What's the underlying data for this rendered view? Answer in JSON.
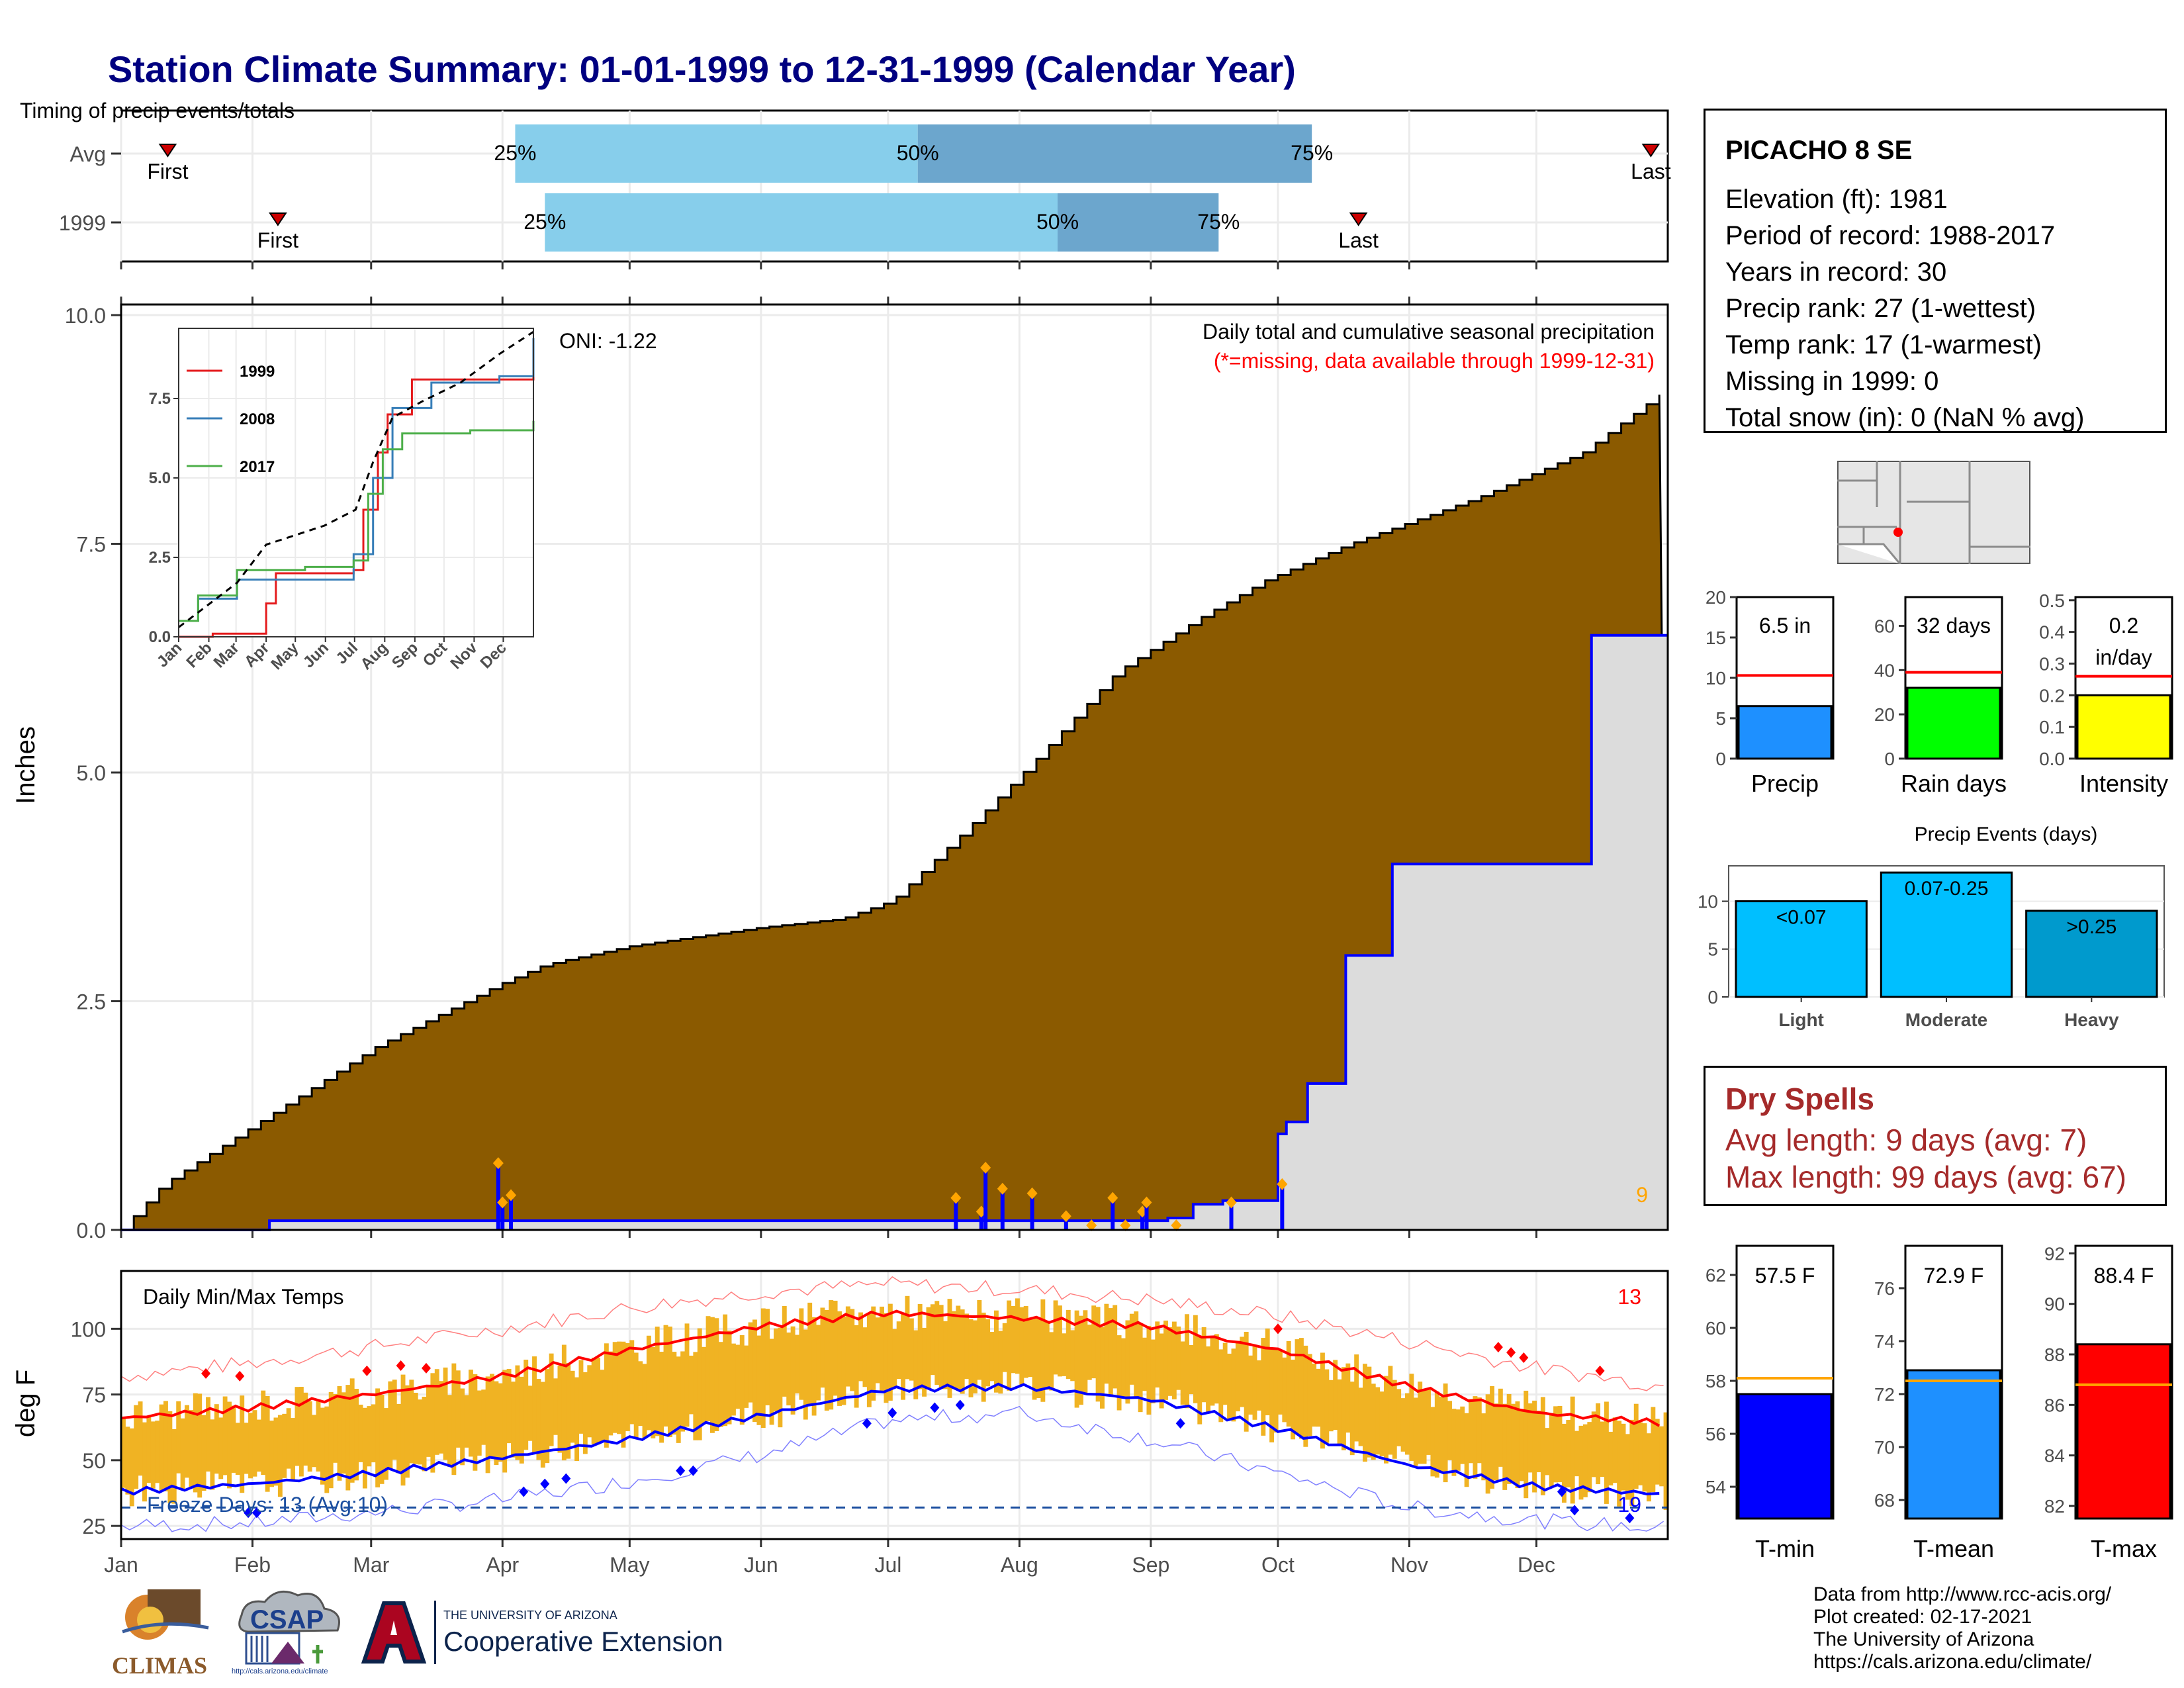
{
  "title": "Station Climate Summary: 01-01-1999 to 12-31-1999 (Calendar Year)",
  "station": {
    "name": "PICACHO 8 SE",
    "lines": [
      "Elevation (ft): 1981",
      "Period of record: 1988-2017",
      "Years in record: 30",
      "Precip rank: 27 (1-wettest)",
      "Temp rank: 17 (1-warmest)",
      "Missing in 1999: 0",
      "Total snow (in): 0 (NaN % avg)"
    ]
  },
  "dry_spells": {
    "title": "Dry Spells",
    "avg": "Avg length: 9 days (avg: 7)",
    "max": "Max length: 99 days (avg: 67)"
  },
  "credits": [
    "Data from http://www.rcc-acis.org/",
    "Plot created: 02-17-2021",
    "The University of Arizona",
    "https://cals.arizona.edu/climate/"
  ],
  "logos": {
    "climas": "CLIMAS",
    "csap": "CSAP",
    "csap_url": "http://cals.arizona.edu/climate",
    "ua_top": "THE UNIVERSITY OF ARIZONA",
    "ua_bottom": "Cooperative Extension"
  },
  "colors": {
    "cum_normal": "#8b5a00",
    "cum_obs_fill": "#dcdcdc",
    "cum_obs_line": "#0000ff",
    "timing_light": "#87ceeb",
    "timing_dark": "#6ca6cd",
    "temp_bar": "#f0b323",
    "tmax": "#ff0000",
    "tmin": "#0000ff",
    "precip_bar": "#1e90ff",
    "rain_days_bar": "#00ff00",
    "intensity_bar": "#ffff00",
    "events_bar": "#00bfff",
    "tmin_bar": "#0000ff",
    "tmean_bar": "#1e90ff",
    "tmax_bar": "#ff0000",
    "normal_line": "#ff0000",
    "temp_normal_line": "#ffa500"
  },
  "chart_data": [
    {
      "type": "timeline",
      "title": "Timing of precip events/totals",
      "rows": [
        {
          "label": "Avg",
          "first_day": 11,
          "p25_day": 93,
          "p50_day": 188,
          "p75_day": 281,
          "last_day": 361,
          "labels": {
            "first": "First",
            "p25": "25%",
            "p50": "50%",
            "p75": "75%",
            "last": "Last"
          }
        },
        {
          "label": "1999",
          "first_day": 37,
          "p25_day": 100,
          "p50_day": 221,
          "p75_day": 259,
          "last_day": 292,
          "labels": {
            "first": "First",
            "p25": "25%",
            "p50": "50%",
            "p75": "75%",
            "last": "Last"
          }
        }
      ]
    },
    {
      "type": "area",
      "title": "Daily total and cumulative seasonal precipitation",
      "subtitle": "(*=missing, data available through 1999-12-31)",
      "annotation": "ONI: -1.22",
      "ylabel": "Inches",
      "ylim": [
        0,
        10
      ],
      "yticks": [
        "0.0",
        "2.5",
        "5.0",
        "7.5",
        "10.0"
      ],
      "months": [
        "Jan",
        "Feb",
        "Mar",
        "Apr",
        "May",
        "Jun",
        "Jul",
        "Aug",
        "Sep",
        "Oct",
        "Nov",
        "Dec"
      ],
      "normal_cumulative": {
        "day": [
          0,
          10,
          30,
          60,
          90,
          100,
          120,
          150,
          170,
          182,
          200,
          215,
          235,
          255,
          270,
          290,
          320,
          345,
          365
        ],
        "value": [
          0,
          0.5,
          1.1,
          2.0,
          2.7,
          2.9,
          3.1,
          3.3,
          3.4,
          3.6,
          4.4,
          5.1,
          6.1,
          6.7,
          7.1,
          7.5,
          8.0,
          8.5,
          9.2
        ]
      },
      "observed_cumulative": {
        "day": [
          0,
          35,
          247,
          253,
          260,
          273,
          275,
          280,
          289,
          300,
          347,
          365
        ],
        "value": [
          0,
          0.1,
          0.13,
          0.28,
          0.32,
          1.05,
          1.18,
          1.6,
          3.0,
          4.0,
          6.5,
          6.5
        ]
      },
      "daily_precip": {
        "day": [
          89,
          90,
          92,
          197,
          203,
          204,
          208,
          215,
          223,
          229,
          234,
          237,
          241,
          242,
          249,
          262,
          274
        ],
        "value": [
          0.73,
          0.3,
          0.38,
          0.35,
          0.2,
          0.68,
          0.45,
          0.4,
          0.15,
          0.05,
          0.35,
          0.05,
          0.2,
          0.3,
          0.05,
          0.3,
          0.5
        ]
      },
      "corner_count": "9",
      "inset": {
        "type": "line",
        "yticks": [
          "0.0",
          "2.5",
          "5.0",
          "7.5"
        ],
        "ylim": [
          0,
          9.5
        ],
        "months": [
          "Jan",
          "Feb",
          "Mar",
          "Apr",
          "May",
          "Jun",
          "Jul",
          "Aug",
          "Sep",
          "Oct",
          "Nov",
          "Dec"
        ],
        "series": [
          {
            "name": "1999",
            "color": "#e41a1c",
            "day": [
              0,
              35,
              90,
              100,
              180,
              190,
              205,
              215,
              240,
              365
            ],
            "values": [
              0,
              0.1,
              1.05,
              2.0,
              2.1,
              4.0,
              5.8,
              7.0,
              8.1,
              8.3
            ]
          },
          {
            "name": "2008",
            "color": "#377eb8",
            "day": [
              0,
              20,
              60,
              100,
              180,
              200,
              220,
              260,
              330,
              365
            ],
            "values": [
              0.5,
              1.2,
              1.8,
              1.8,
              2.6,
              5.0,
              7.2,
              8.0,
              8.2,
              9.4
            ]
          },
          {
            "name": "2017",
            "color": "#4daf4a",
            "day": [
              0,
              20,
              60,
              130,
              180,
              195,
              210,
              230,
              300,
              365
            ],
            "values": [
              0.5,
              1.3,
              2.1,
              2.2,
              2.4,
              4.5,
              5.9,
              6.4,
              6.5,
              6.8
            ]
          }
        ],
        "normal": {
          "day": [
            0,
            30,
            60,
            90,
            120,
            150,
            182,
            200,
            220,
            250,
            290,
            330,
            365
          ],
          "values": [
            0.3,
            1.0,
            1.7,
            2.9,
            3.2,
            3.5,
            4.0,
            5.5,
            6.9,
            7.4,
            8.0,
            8.9,
            9.6
          ]
        }
      }
    },
    {
      "type": "bar",
      "title": "Daily Min/Max Temps",
      "ylabel": "deg F",
      "ylim": [
        20,
        122
      ],
      "yticks": [
        "25",
        "50",
        "75",
        "100"
      ],
      "freeze_line": 32,
      "freeze_label": "Freeze Days: 13 (Avg:10)",
      "corner_count_red": "13",
      "corner_count_blue": "19",
      "months": [
        "Jan",
        "Feb",
        "Mar",
        "Apr",
        "May",
        "Jun",
        "Jul",
        "Aug",
        "Sep",
        "Oct",
        "Nov",
        "Dec"
      ],
      "normal_tmax": {
        "day": [
          0,
          31,
          59,
          90,
          120,
          151,
          181,
          212,
          243,
          273,
          304,
          334,
          365
        ],
        "value": [
          66,
          70,
          75,
          82,
          92,
          101,
          106,
          104,
          101,
          92,
          78,
          68,
          64
        ]
      },
      "normal_tmin": {
        "day": [
          0,
          31,
          59,
          90,
          120,
          151,
          181,
          212,
          243,
          273,
          304,
          334,
          365
        ],
        "value": [
          38,
          41,
          45,
          51,
          58,
          67,
          77,
          78,
          73,
          62,
          48,
          40,
          37
        ]
      },
      "record_tmax": {
        "day": [
          0,
          31,
          59,
          90,
          120,
          151,
          181,
          212,
          243,
          273,
          304,
          334,
          365
        ],
        "value": [
          82,
          87,
          93,
          100,
          108,
          114,
          117,
          115,
          111,
          105,
          95,
          85,
          78
        ]
      },
      "record_tmin": {
        "day": [
          0,
          31,
          59,
          90,
          120,
          151,
          181,
          212,
          243,
          273,
          304,
          334,
          365
        ],
        "value": [
          25,
          26,
          30,
          35,
          42,
          52,
          65,
          68,
          58,
          45,
          32,
          27,
          24
        ]
      }
    },
    {
      "type": "bar",
      "title": "Precip",
      "categories": [
        "Precip"
      ],
      "values": [
        6.5
      ],
      "normal": 10.3,
      "label": "6.5 in",
      "ylim": [
        0,
        20
      ],
      "yticks": [
        "0",
        "5",
        "10",
        "15",
        "20"
      ]
    },
    {
      "type": "bar",
      "title": "Rain days",
      "categories": [
        "Rain days"
      ],
      "values": [
        32
      ],
      "normal": 39,
      "label": "32 days",
      "ylim": [
        0,
        73
      ],
      "yticks": [
        "0",
        "20",
        "40",
        "60"
      ]
    },
    {
      "type": "bar",
      "title": "Intensity",
      "categories": [
        "Intensity"
      ],
      "values": [
        0.2
      ],
      "normal": 0.26,
      "label_line1": "0.2",
      "label_line2": "in/day",
      "ylim": [
        0,
        0.51
      ],
      "yticks": [
        "0.0",
        "0.1",
        "0.2",
        "0.3",
        "0.4",
        "0.5"
      ]
    },
    {
      "type": "bar",
      "title": "Precip Events (days)",
      "categories": [
        "Light",
        "Moderate",
        "Heavy"
      ],
      "values": [
        10,
        13,
        9
      ],
      "bar_labels": [
        "<0.07",
        "0.07-0.25",
        ">0.25"
      ],
      "ylim": [
        0,
        13.7
      ],
      "yticks": [
        "0",
        "5",
        "10"
      ]
    },
    {
      "type": "bar",
      "title": "T-min",
      "categories": [
        "T-min"
      ],
      "values": [
        57.5
      ],
      "normal": 58.1,
      "label": "57.5 F",
      "ylim": [
        52.8,
        63.1
      ],
      "yticks": [
        "54",
        "56",
        "58",
        "60",
        "62"
      ]
    },
    {
      "type": "bar",
      "title": "T-mean",
      "categories": [
        "T-mean"
      ],
      "values": [
        72.9
      ],
      "normal": 72.5,
      "label": "72.9 F",
      "ylim": [
        67.3,
        77.6
      ],
      "yticks": [
        "68",
        "70",
        "72",
        "74",
        "76"
      ]
    },
    {
      "type": "bar",
      "title": "T-max",
      "categories": [
        "T-max"
      ],
      "values": [
        88.4
      ],
      "normal": 86.8,
      "label": "88.4 F",
      "ylim": [
        81.5,
        92.3
      ],
      "yticks": [
        "82",
        "84",
        "86",
        "88",
        "90",
        "92"
      ]
    }
  ]
}
